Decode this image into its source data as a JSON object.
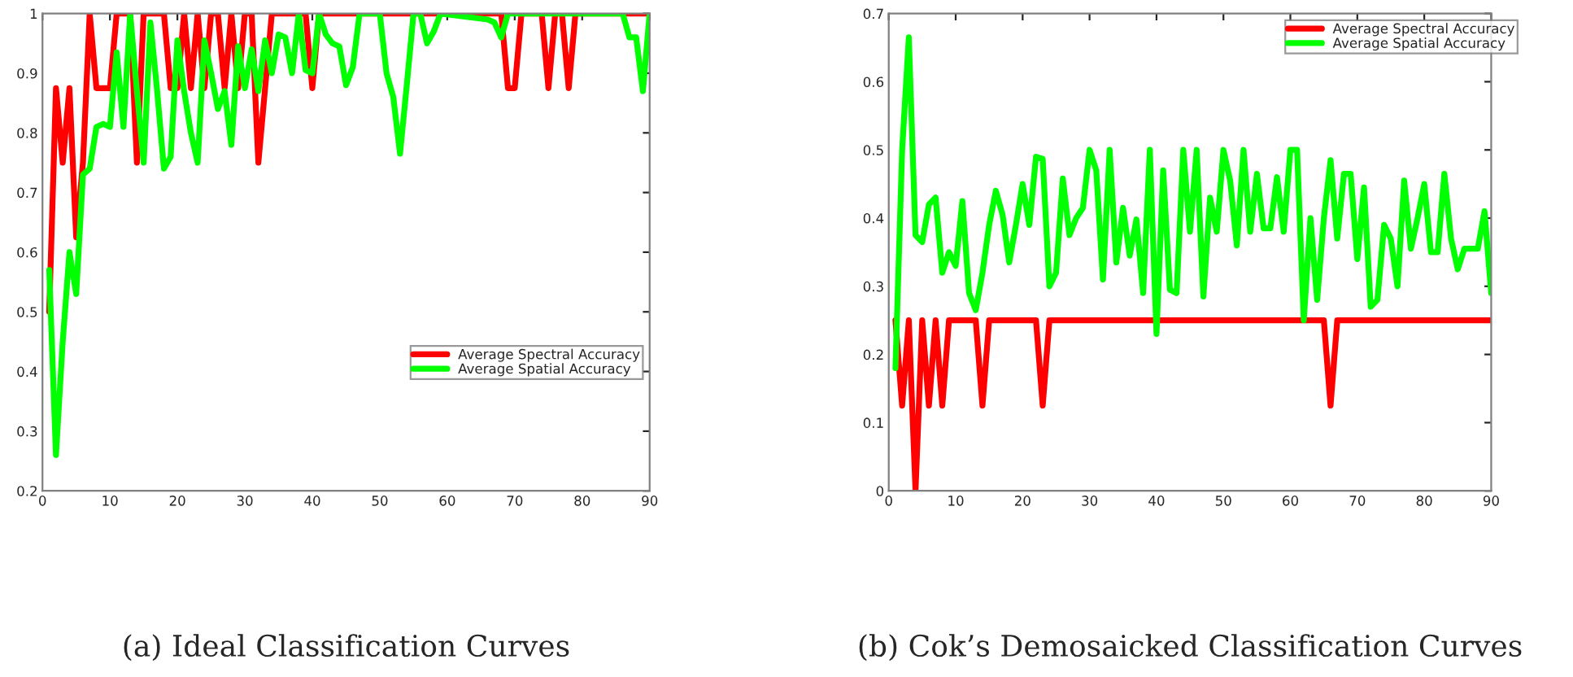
{
  "chart_data": [
    {
      "type": "line",
      "annotations": [
        "(a) Ideal Classification Curves"
      ],
      "xlim": [
        0,
        90
      ],
      "xticks": [
        0,
        10,
        20,
        30,
        40,
        50,
        60,
        70,
        80,
        90
      ],
      "ylim": [
        0.2,
        1
      ],
      "yticks": [
        0.2,
        0.3,
        0.4,
        0.5,
        0.6,
        0.7,
        0.8,
        0.9,
        1
      ],
      "grid": false,
      "legend": "lower right",
      "series": [
        {
          "name": "Average Spectral Accuracy",
          "color": "#ff0000",
          "x": [
            1,
            2,
            3,
            4,
            5,
            6,
            7,
            8,
            10,
            11,
            13,
            14,
            15,
            18,
            19,
            20,
            21,
            22,
            23,
            24,
            25,
            26,
            27,
            28,
            29,
            30,
            31,
            32,
            34,
            39,
            40,
            41,
            68,
            69,
            70,
            71,
            74,
            75,
            76,
            77,
            78,
            79,
            90
          ],
          "values": [
            0.5,
            0.875,
            0.75,
            0.875,
            0.625,
            0.75,
            1,
            0.875,
            0.875,
            1,
            1,
            0.75,
            1,
            1,
            0.875,
            0.875,
            1,
            0.875,
            1,
            0.875,
            1,
            1,
            0.875,
            1,
            0.875,
            1,
            1,
            0.75,
            1,
            1,
            0.875,
            1,
            1,
            0.875,
            0.875,
            1,
            1,
            0.875,
            1,
            1,
            0.875,
            1,
            1
          ]
        },
        {
          "name": "Average Spatial Accuracy",
          "color": "#00ff00",
          "x": [
            1,
            2,
            3,
            4,
            5,
            6,
            7,
            8,
            9,
            10,
            11,
            12,
            13,
            14,
            15,
            16,
            17,
            18,
            19,
            20,
            21,
            22,
            23,
            24,
            25,
            26,
            27,
            28,
            29,
            30,
            31,
            32,
            33,
            34,
            35,
            36,
            37,
            38,
            39,
            40,
            41,
            42,
            43,
            44,
            45,
            46,
            47,
            50,
            51,
            52,
            53,
            54,
            55,
            56,
            57,
            58,
            59,
            66,
            67,
            68,
            69,
            86,
            87,
            88,
            89,
            90
          ],
          "values": [
            0.57,
            0.26,
            0.45,
            0.6,
            0.53,
            0.73,
            0.74,
            0.81,
            0.815,
            0.81,
            0.935,
            0.81,
            1,
            0.87,
            0.75,
            0.985,
            0.87,
            0.74,
            0.76,
            0.955,
            0.87,
            0.8,
            0.75,
            0.955,
            0.9,
            0.84,
            0.87,
            0.78,
            0.945,
            0.875,
            0.94,
            0.87,
            0.955,
            0.9,
            0.965,
            0.96,
            0.9,
            1,
            0.905,
            0.9,
            1,
            0.965,
            0.95,
            0.945,
            0.88,
            0.91,
            1,
            1,
            0.9,
            0.86,
            0.765,
            0.88,
            1,
            1,
            0.95,
            0.97,
            1,
            0.99,
            0.985,
            0.96,
            1,
            1,
            0.96,
            0.96,
            0.87,
            1
          ]
        }
      ]
    },
    {
      "type": "line",
      "annotations": [
        "(b) Cok’s Demosaicked Classification Curves"
      ],
      "xlim": [
        0,
        90
      ],
      "xticks": [
        0,
        10,
        20,
        30,
        40,
        50,
        60,
        70,
        80,
        90
      ],
      "ylim": [
        0,
        0.7
      ],
      "yticks": [
        0,
        0.1,
        0.2,
        0.3,
        0.4,
        0.5,
        0.6,
        0.7
      ],
      "grid": false,
      "legend": "top right",
      "series": [
        {
          "name": "Average Spectral Accuracy",
          "color": "#ff0000",
          "x": [
            1,
            2,
            3,
            4,
            5,
            6,
            7,
            8,
            9,
            13,
            14,
            15,
            22,
            23,
            24,
            65,
            66,
            67,
            90
          ],
          "values": [
            0.25,
            0.125,
            0.25,
            0,
            0.25,
            0.125,
            0.25,
            0.125,
            0.25,
            0.25,
            0.125,
            0.25,
            0.25,
            0.125,
            0.25,
            0.25,
            0.125,
            0.25,
            0.25
          ]
        },
        {
          "name": "Average Spatial Accuracy",
          "color": "#00ff00",
          "x": [
            1,
            2,
            3,
            4,
            5,
            6,
            7,
            8,
            9,
            10,
            11,
            12,
            13,
            14,
            15,
            16,
            17,
            18,
            19,
            20,
            21,
            22,
            23,
            24,
            25,
            26,
            27,
            28,
            29,
            30,
            31,
            32,
            33,
            34,
            35,
            36,
            37,
            38,
            39,
            40,
            41,
            42,
            43,
            44,
            45,
            46,
            47,
            48,
            49,
            50,
            51,
            52,
            53,
            54,
            55,
            56,
            57,
            58,
            59,
            60,
            61,
            62,
            63,
            64,
            65,
            66,
            67,
            68,
            69,
            70,
            71,
            72,
            73,
            74,
            75,
            76,
            77,
            78,
            79,
            80,
            81,
            82,
            83,
            84,
            85,
            86,
            87,
            88,
            89,
            90
          ],
          "values": [
            0.18,
            0.5,
            0.665,
            0.375,
            0.365,
            0.42,
            0.43,
            0.32,
            0.35,
            0.33,
            0.425,
            0.29,
            0.265,
            0.32,
            0.39,
            0.44,
            0.405,
            0.335,
            0.39,
            0.45,
            0.39,
            0.49,
            0.487,
            0.3,
            0.32,
            0.458,
            0.375,
            0.4,
            0.415,
            0.5,
            0.47,
            0.31,
            0.5,
            0.335,
            0.415,
            0.345,
            0.398,
            0.29,
            0.5,
            0.23,
            0.47,
            0.295,
            0.29,
            0.5,
            0.38,
            0.5,
            0.285,
            0.43,
            0.38,
            0.5,
            0.455,
            0.36,
            0.5,
            0.38,
            0.465,
            0.385,
            0.385,
            0.46,
            0.38,
            0.5,
            0.5,
            0.25,
            0.4,
            0.28,
            0.4,
            0.485,
            0.37,
            0.465,
            0.465,
            0.34,
            0.445,
            0.27,
            0.28,
            0.39,
            0.37,
            0.3,
            0.455,
            0.355,
            0.4,
            0.45,
            0.35,
            0.35,
            0.465,
            0.37,
            0.325,
            0.355,
            0.355,
            0.355,
            0.41,
            0.29
          ]
        }
      ]
    }
  ]
}
